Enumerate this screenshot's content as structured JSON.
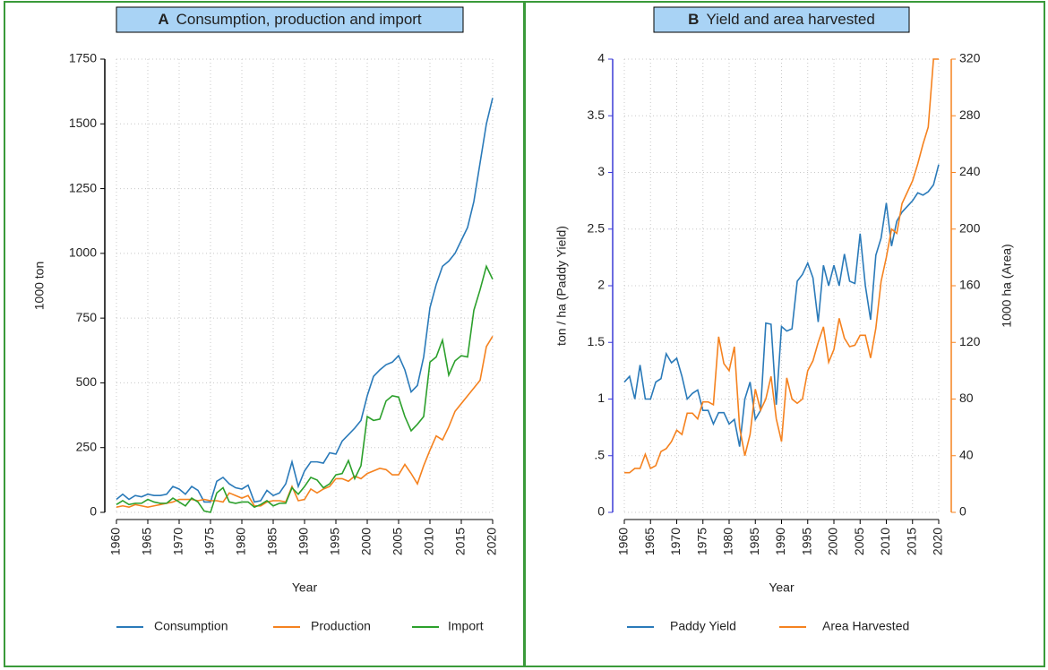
{
  "chart_data": [
    {
      "type": "line",
      "panel_label": "A",
      "title": "Consumption, production and import",
      "xlabel": "Year",
      "ylabel": "1000 ton",
      "x": [
        1960,
        1961,
        1962,
        1963,
        1964,
        1965,
        1966,
        1967,
        1968,
        1969,
        1970,
        1971,
        1972,
        1973,
        1974,
        1975,
        1976,
        1977,
        1978,
        1979,
        1980,
        1981,
        1982,
        1983,
        1984,
        1985,
        1986,
        1987,
        1988,
        1989,
        1990,
        1991,
        1992,
        1993,
        1994,
        1995,
        1996,
        1997,
        1998,
        1999,
        2000,
        2001,
        2002,
        2003,
        2004,
        2005,
        2006,
        2007,
        2008,
        2009,
        2010,
        2011,
        2012,
        2013,
        2014,
        2015,
        2016,
        2017,
        2018,
        2019,
        2020
      ],
      "xlim": [
        1960,
        2020
      ],
      "xticks": [
        1960,
        1965,
        1970,
        1975,
        1980,
        1985,
        1990,
        1995,
        2000,
        2005,
        2010,
        2015,
        2020
      ],
      "ylim": [
        0,
        1750
      ],
      "yticks": [
        0,
        250,
        500,
        750,
        1000,
        1250,
        1500,
        1750
      ],
      "grid": true,
      "axis_color": "#000000",
      "series": [
        {
          "name": "Consumption",
          "color": "#2a7ab9",
          "values": [
            50,
            70,
            50,
            65,
            60,
            70,
            65,
            65,
            70,
            100,
            90,
            70,
            100,
            85,
            40,
            40,
            120,
            135,
            110,
            95,
            90,
            105,
            40,
            45,
            85,
            65,
            75,
            110,
            195,
            100,
            160,
            195,
            195,
            190,
            230,
            225,
            275,
            300,
            325,
            355,
            450,
            525,
            550,
            570,
            580,
            605,
            550,
            465,
            490,
            600,
            790,
            880,
            950,
            970,
            1000,
            1050,
            1100,
            1200,
            1350,
            1500,
            1600
          ]
        },
        {
          "name": "Production",
          "color": "#f5821f",
          "values": [
            20,
            25,
            20,
            30,
            25,
            20,
            25,
            30,
            35,
            40,
            50,
            50,
            50,
            45,
            50,
            45,
            45,
            40,
            75,
            65,
            55,
            65,
            25,
            25,
            40,
            45,
            45,
            40,
            100,
            45,
            50,
            90,
            75,
            90,
            100,
            130,
            130,
            120,
            140,
            130,
            150,
            160,
            170,
            165,
            145,
            145,
            185,
            150,
            110,
            180,
            240,
            295,
            280,
            330,
            390,
            420,
            450,
            480,
            510,
            640,
            680
          ]
        },
        {
          "name": "Import",
          "color": "#2ca02c",
          "values": [
            30,
            45,
            30,
            35,
            35,
            50,
            40,
            35,
            35,
            55,
            40,
            25,
            55,
            40,
            5,
            0,
            75,
            95,
            40,
            35,
            40,
            40,
            20,
            30,
            45,
            25,
            35,
            35,
            95,
            70,
            100,
            135,
            125,
            95,
            110,
            145,
            150,
            200,
            130,
            180,
            370,
            355,
            360,
            430,
            450,
            445,
            370,
            315,
            340,
            370,
            580,
            600,
            665,
            530,
            585,
            605,
            600,
            780,
            860,
            950,
            900
          ]
        }
      ]
    },
    {
      "type": "line",
      "panel_label": "B",
      "title": "Yield and area harvested",
      "xlabel": "Year",
      "ylabel": "ton / ha (Paddy Yield)",
      "y2label": "1000 ha (Area)",
      "x": [
        1960,
        1961,
        1962,
        1963,
        1964,
        1965,
        1966,
        1967,
        1968,
        1969,
        1970,
        1971,
        1972,
        1973,
        1974,
        1975,
        1976,
        1977,
        1978,
        1979,
        1980,
        1981,
        1982,
        1983,
        1984,
        1985,
        1986,
        1987,
        1988,
        1989,
        1990,
        1991,
        1992,
        1993,
        1994,
        1995,
        1996,
        1997,
        1998,
        1999,
        2000,
        2001,
        2002,
        2003,
        2004,
        2005,
        2006,
        2007,
        2008,
        2009,
        2010,
        2011,
        2012,
        2013,
        2014,
        2015,
        2016,
        2017,
        2018,
        2019,
        2020
      ],
      "xlim": [
        1960,
        2020
      ],
      "xticks": [
        1960,
        1965,
        1970,
        1975,
        1980,
        1985,
        1990,
        1995,
        2000,
        2005,
        2010,
        2015,
        2020
      ],
      "ylim": [
        0,
        4
      ],
      "yticks": [
        0,
        {
          "value": 0.5,
          "label": ".5"
        },
        1,
        1.5,
        2,
        2.5,
        3,
        3.5,
        4
      ],
      "y2lim": [
        0,
        320
      ],
      "y2ticks": [
        0,
        40,
        80,
        120,
        160,
        200,
        240,
        280,
        320
      ],
      "grid": true,
      "axis_color": "#3b3bd6",
      "y2_axis_color": "#f5821f",
      "series": [
        {
          "name": "Paddy Yield",
          "color": "#2a7ab9",
          "values": [
            1.15,
            1.2,
            1.0,
            1.3,
            1.0,
            1.0,
            1.15,
            1.18,
            1.4,
            1.32,
            1.36,
            1.2,
            1.0,
            1.05,
            1.08,
            0.9,
            0.9,
            0.78,
            0.88,
            0.88,
            0.78,
            0.82,
            0.58,
            1.0,
            1.15,
            0.82,
            0.9,
            1.67,
            1.66,
            0.95,
            1.64,
            1.6,
            1.62,
            2.04,
            2.1,
            2.2,
            2.07,
            1.68,
            2.18,
            2.0,
            2.18,
            2.0,
            2.28,
            2.04,
            2.02,
            2.46,
            2.0,
            1.7,
            2.27,
            2.42,
            2.73,
            2.35,
            2.57,
            2.65,
            2.7,
            2.75,
            2.82,
            2.8,
            2.83,
            2.89,
            3.07
          ]
        },
        {
          "name": "Area Harvested",
          "color": "#f5821f",
          "axis": "y2",
          "values": [
            28,
            28,
            31,
            31,
            41,
            31,
            33,
            43,
            45,
            50,
            58,
            55,
            70,
            70,
            66,
            78,
            78,
            76,
            124,
            105,
            100,
            117,
            60,
            40,
            55,
            87,
            72,
            80,
            96,
            66,
            50,
            95,
            80,
            77,
            80,
            100,
            107,
            120,
            131,
            106,
            115,
            137,
            123,
            117,
            118,
            125,
            125,
            109,
            130,
            163,
            180,
            200,
            197,
            218,
            226,
            234,
            246,
            260,
            272,
            320,
            320
          ]
        }
      ]
    }
  ]
}
